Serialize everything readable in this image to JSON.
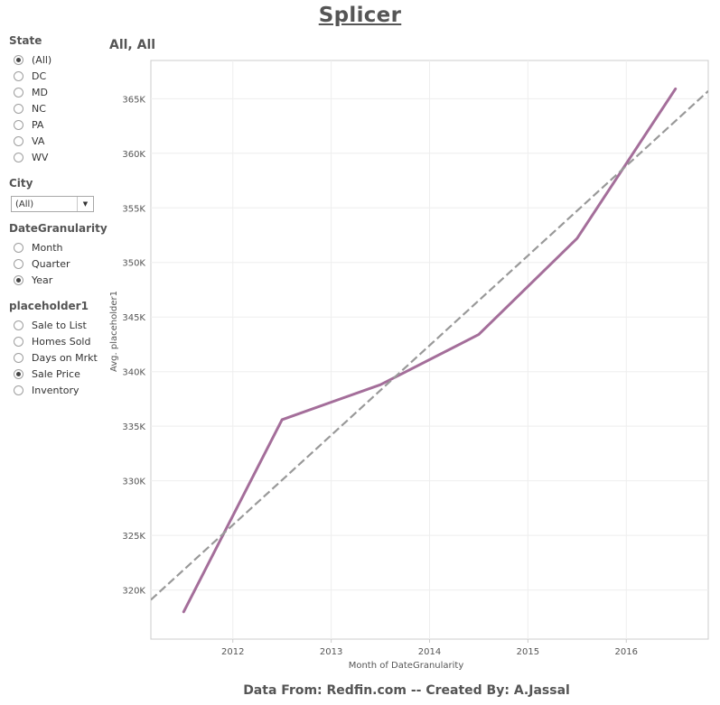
{
  "page_title": "Splicer",
  "subtitle": "All, All",
  "footer": "Data From: Redfin.com -- Created By: A.Jassal",
  "filters": {
    "state": {
      "title": "State",
      "options": [
        "(All)",
        "DC",
        "MD",
        "NC",
        "PA",
        "VA",
        "WV"
      ],
      "selected": "(All)"
    },
    "city": {
      "title": "City",
      "value": "(All)"
    },
    "date_granularity": {
      "title": "DateGranularity",
      "options": [
        "Month",
        "Quarter",
        "Year"
      ],
      "selected": "Year"
    },
    "placeholder1": {
      "title": "placeholder1",
      "options": [
        "Sale to List",
        "Homes Sold",
        "Days on Mrkt",
        "Sale Price",
        "Inventory"
      ],
      "selected": "Sale Price"
    }
  },
  "colors": {
    "series": "#a46e9a",
    "trend": "#999999",
    "grid": "#eeeeee",
    "axis": "#cccccc"
  },
  "chart_data": {
    "type": "line",
    "xlabel": "Month of DateGranularity",
    "ylabel": "Avg. placeholder1",
    "x_ticks": [
      "2012",
      "2013",
      "2014",
      "2015",
      "2016"
    ],
    "y_ticks": [
      "320K",
      "325K",
      "330K",
      "335K",
      "340K",
      "345K",
      "350K",
      "355K",
      "360K",
      "365K"
    ],
    "y_tick_values": [
      320000,
      325000,
      330000,
      335000,
      340000,
      345000,
      350000,
      355000,
      360000,
      365000
    ],
    "ylim": [
      315500,
      368500
    ],
    "xlim": [
      "2011-03",
      "2016-11"
    ],
    "grid": true,
    "series": [
      {
        "x": [
          "2011-07",
          "2012-07",
          "2013-07",
          "2014-07",
          "2015-07",
          "2016-07"
        ],
        "values": [
          318000,
          335600,
          338800,
          343400,
          352200,
          365900
        ]
      }
    ],
    "trend_line": {
      "style": "dashed",
      "x": [
        "2011-03",
        "2016-11"
      ],
      "values": [
        319100,
        365700
      ]
    }
  }
}
